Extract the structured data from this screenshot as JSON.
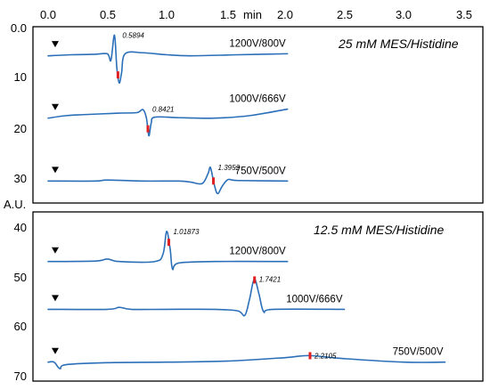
{
  "chart_data": {
    "type": "line",
    "x_unit_label": "min",
    "y_unit_label": "A.U.",
    "x_ticks": [
      "0.0",
      "0.5",
      "1.0",
      "1.5",
      "2.0",
      "2.5",
      "3.0",
      "3.5"
    ],
    "xlim": [
      0.0,
      3.5
    ],
    "ylim": [
      0,
      70
    ],
    "y_ticks_top": [
      "0.0",
      "10",
      "20",
      "30"
    ],
    "y_ticks_bottom": [
      "40",
      "50",
      "60",
      "70"
    ],
    "panels": [
      {
        "title": "25 mM MES/Histidine",
        "series": [
          {
            "name": "1200V/800V",
            "inject_time": 0.06,
            "peak_time": 0.5894,
            "peak_label": "0.5894",
            "baseline": 5.5,
            "end_time": 2.02,
            "points": [
              [
                0.0,
                5.6
              ],
              [
                0.2,
                5.4
              ],
              [
                0.4,
                5.3
              ],
              [
                0.5,
                5.2
              ],
              [
                0.53,
                6.5
              ],
              [
                0.56,
                1.5
              ],
              [
                0.58,
                8.0
              ],
              [
                0.6,
                11.0
              ],
              [
                0.62,
                9.0
              ],
              [
                0.65,
                5.2
              ],
              [
                0.8,
                5.0
              ],
              [
                1.0,
                5.4
              ],
              [
                1.2,
                5.6
              ],
              [
                1.6,
                5.4
              ],
              [
                2.02,
                5.2
              ]
            ]
          },
          {
            "name": "1000V/666V",
            "inject_time": 0.06,
            "peak_time": 0.8421,
            "peak_label": "0.8421",
            "baseline": 18.0,
            "end_time": 2.02,
            "points": [
              [
                0.0,
                18.0
              ],
              [
                0.15,
                17.5
              ],
              [
                0.3,
                17.3
              ],
              [
                0.6,
                17.0
              ],
              [
                0.75,
                16.9
              ],
              [
                0.8,
                16.3
              ],
              [
                0.83,
                18.0
              ],
              [
                0.85,
                21.5
              ],
              [
                0.87,
                19.0
              ],
              [
                0.9,
                17.8
              ],
              [
                1.1,
                17.9
              ],
              [
                1.4,
                18.0
              ],
              [
                1.7,
                17.5
              ],
              [
                2.02,
                16.2
              ]
            ]
          },
          {
            "name": "750V/500V",
            "inject_time": 0.06,
            "peak_time": 1.3952,
            "peak_label": "1.3952",
            "baseline": 30.5,
            "end_time": 2.02,
            "points": [
              [
                0.0,
                30.5
              ],
              [
                0.4,
                30.5
              ],
              [
                0.5,
                30.3
              ],
              [
                0.8,
                30.5
              ],
              [
                1.1,
                30.5
              ],
              [
                1.2,
                30.7
              ],
              [
                1.3,
                31.0
              ],
              [
                1.35,
                29.0
              ],
              [
                1.37,
                27.8
              ],
              [
                1.4,
                31.0
              ],
              [
                1.43,
                33.0
              ],
              [
                1.47,
                31.5
              ],
              [
                1.52,
                30.2
              ],
              [
                1.6,
                30.4
              ],
              [
                2.02,
                30.5
              ]
            ]
          }
        ]
      },
      {
        "title": "12.5 mM MES/Histidine",
        "series": [
          {
            "name": "1200V/800V",
            "inject_time": 0.06,
            "peak_time": 1.01873,
            "peak_label": "1.01873",
            "baseline": 46.5,
            "end_time": 2.02,
            "points": [
              [
                0.0,
                46.5
              ],
              [
                0.4,
                46.4
              ],
              [
                0.5,
                46.0
              ],
              [
                0.6,
                46.5
              ],
              [
                0.9,
                46.5
              ],
              [
                0.97,
                45.0
              ],
              [
                1.0,
                40.5
              ],
              [
                1.03,
                44.0
              ],
              [
                1.05,
                48.0
              ],
              [
                1.1,
                46.8
              ],
              [
                1.4,
                46.5
              ],
              [
                2.02,
                46.5
              ]
            ]
          },
          {
            "name": "1000V/666V",
            "inject_time": 0.06,
            "peak_time": 1.7421,
            "peak_label": "1.7421",
            "baseline": 56.0,
            "end_time": 2.5,
            "points": [
              [
                0.0,
                56.0
              ],
              [
                0.5,
                56.0
              ],
              [
                0.6,
                55.6
              ],
              [
                0.7,
                56.0
              ],
              [
                1.0,
                56.0
              ],
              [
                1.4,
                56.0
              ],
              [
                1.6,
                56.3
              ],
              [
                1.66,
                57.2
              ],
              [
                1.7,
                54.0
              ],
              [
                1.74,
                50.0
              ],
              [
                1.78,
                53.0
              ],
              [
                1.82,
                56.5
              ],
              [
                1.9,
                56.0
              ],
              [
                2.5,
                56.0
              ]
            ]
          },
          {
            "name": "750V/500V",
            "inject_time": 0.06,
            "peak_time": 2.2105,
            "peak_label": "2.2105",
            "baseline": 66.5,
            "end_time": 3.35,
            "points": [
              [
                0.0,
                66.5
              ],
              [
                0.05,
                66.5
              ],
              [
                0.1,
                67.8
              ],
              [
                0.15,
                67.0
              ],
              [
                0.5,
                66.6
              ],
              [
                1.0,
                66.5
              ],
              [
                1.5,
                66.3
              ],
              [
                2.0,
                65.6
              ],
              [
                2.2,
                65.2
              ],
              [
                2.5,
                65.8
              ],
              [
                3.0,
                66.5
              ],
              [
                3.35,
                66.5
              ]
            ]
          }
        ]
      }
    ]
  },
  "colors": {
    "trace": "#2a6fb8",
    "peak_marker": "#e02020",
    "axis": "#000000",
    "grid": "#cccccc"
  }
}
